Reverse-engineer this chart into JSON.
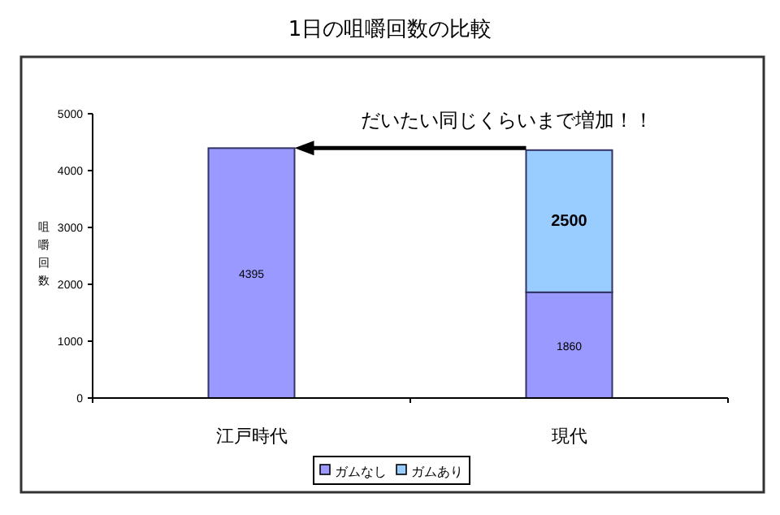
{
  "chart_data": {
    "type": "bar",
    "title": "1日の咀嚼回数の比較",
    "ylabel": "咀嚼回数",
    "categories": [
      "江戸時代",
      "現代"
    ],
    "series": [
      {
        "name": "ガムなし",
        "color": "#9999ff",
        "values": [
          4395,
          1860
        ]
      },
      {
        "name": "ガムあり",
        "color": "#99ccff",
        "values": [
          null,
          2500
        ]
      }
    ],
    "stacked": true,
    "ylim": [
      0,
      5000
    ],
    "yticks": [
      0,
      1000,
      2000,
      3000,
      4000,
      5000
    ],
    "data_labels": true,
    "legend": "bottom",
    "annotations": [
      "だいたい同じくらいまで増加！！"
    ]
  }
}
